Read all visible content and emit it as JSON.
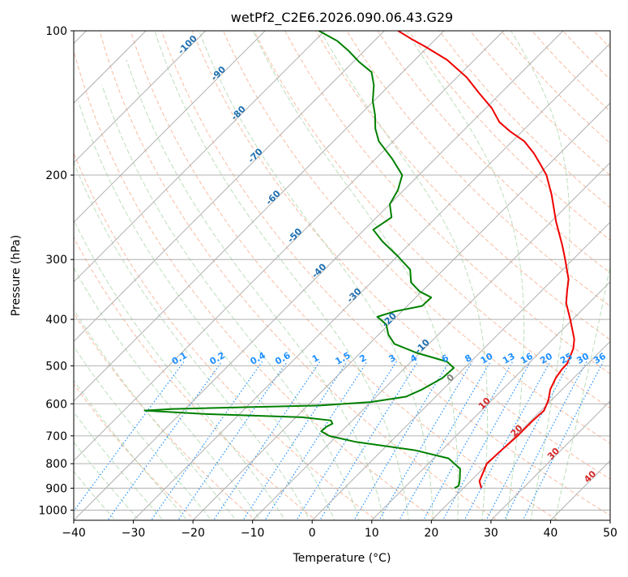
{
  "chart_data": {
    "type": "line",
    "title": "wetPf2_C2E6.2026.090.06.43.G29",
    "xlabel": "Temperature (°C)",
    "ylabel": "Pressure (hPa)",
    "xlim": [
      -40,
      50
    ],
    "ylim": [
      1050,
      100
    ],
    "y_scale": "log",
    "x_ticks": [
      -40,
      -30,
      -20,
      -10,
      0,
      10,
      20,
      30,
      40,
      50
    ],
    "x_tick_labels": [
      "−40",
      "−30",
      "−20",
      "−10",
      "0",
      "10",
      "20",
      "30",
      "40",
      "50"
    ],
    "y_ticks": [
      100,
      200,
      300,
      400,
      500,
      600,
      700,
      800,
      900,
      1000
    ],
    "y_tick_labels": [
      "100",
      "200",
      "300",
      "400",
      "500",
      "600",
      "700",
      "800",
      "900",
      "1000"
    ],
    "skew": 1.0,
    "grid": true,
    "series": [
      {
        "role": "temperature",
        "color": "#ee0000",
        "points": [
          [
            900,
            23.0
          ],
          [
            870,
            21.5
          ],
          [
            840,
            20.8
          ],
          [
            800,
            19.8
          ],
          [
            750,
            20.0
          ],
          [
            700,
            20.3
          ],
          [
            650,
            20.3
          ],
          [
            620,
            20.5
          ],
          [
            590,
            19.5
          ],
          [
            560,
            18.0
          ],
          [
            530,
            17.0
          ],
          [
            510,
            16.6
          ],
          [
            495,
            16.5
          ],
          [
            480,
            15.9
          ],
          [
            460,
            15.0
          ],
          [
            440,
            13.6
          ],
          [
            400,
            9.6
          ],
          [
            370,
            6.2
          ],
          [
            350,
            4.4
          ],
          [
            330,
            2.6
          ],
          [
            300,
            -1.3
          ],
          [
            280,
            -4.2
          ],
          [
            250,
            -9.2
          ],
          [
            220,
            -14.4
          ],
          [
            200,
            -18.6
          ],
          [
            190,
            -21.4
          ],
          [
            180,
            -24.4
          ],
          [
            170,
            -28.0
          ],
          [
            162,
            -32.1
          ],
          [
            155,
            -35.4
          ],
          [
            145,
            -39.0
          ],
          [
            135,
            -43.6
          ],
          [
            125,
            -48.4
          ],
          [
            115,
            -54.6
          ],
          [
            108,
            -60.4
          ],
          [
            104,
            -64.1
          ],
          [
            100,
            -67.7
          ]
        ]
      },
      {
        "role": "dewpoint",
        "color": "#008000",
        "points": [
          [
            900,
            18.5
          ],
          [
            890,
            18.8
          ],
          [
            880,
            18.5
          ],
          [
            860,
            17.8
          ],
          [
            820,
            16.2
          ],
          [
            780,
            12.5
          ],
          [
            750,
            5.5
          ],
          [
            720,
            -6.0
          ],
          [
            700,
            -11.3
          ],
          [
            685,
            -13.4
          ],
          [
            670,
            -13.3
          ],
          [
            660,
            -12.8
          ],
          [
            650,
            -13.6
          ],
          [
            640,
            -19.0
          ],
          [
            630,
            -36.0
          ],
          [
            620,
            -46.5
          ],
          [
            615,
            -42.0
          ],
          [
            605,
            -18.0
          ],
          [
            595,
            -10.0
          ],
          [
            580,
            -5.0
          ],
          [
            560,
            -3.5
          ],
          [
            530,
            -2.0
          ],
          [
            505,
            -1.8
          ],
          [
            490,
            -4.0
          ],
          [
            470,
            -10.5
          ],
          [
            450,
            -15.8
          ],
          [
            430,
            -18.4
          ],
          [
            410,
            -20.4
          ],
          [
            395,
            -23.2
          ],
          [
            385,
            -21.2
          ],
          [
            375,
            -17.5
          ],
          [
            360,
            -17.4
          ],
          [
            350,
            -20.3
          ],
          [
            335,
            -23.3
          ],
          [
            315,
            -25.6
          ],
          [
            295,
            -30.0
          ],
          [
            275,
            -35.0
          ],
          [
            260,
            -38.5
          ],
          [
            245,
            -37.5
          ],
          [
            230,
            -40.0
          ],
          [
            215,
            -41.0
          ],
          [
            200,
            -42.8
          ],
          [
            185,
            -47.2
          ],
          [
            170,
            -52.4
          ],
          [
            160,
            -55.1
          ],
          [
            150,
            -57.4
          ],
          [
            140,
            -60.2
          ],
          [
            130,
            -62.6
          ],
          [
            122,
            -65.2
          ],
          [
            116,
            -69.1
          ],
          [
            110,
            -72.7
          ],
          [
            105,
            -76.2
          ],
          [
            100,
            -81.0
          ]
        ]
      }
    ],
    "mixing_ratio_labels": [
      "0.1",
      "0.2",
      "0.4",
      "0.6",
      "1",
      "1.5",
      "2",
      "3",
      "4",
      "6",
      "8",
      "10",
      "13",
      "16",
      "20",
      "25",
      "30",
      "36"
    ],
    "moist_adiabat_labels": [
      "-100",
      "-90",
      "-80",
      "-70",
      "-60",
      "-50",
      "-40",
      "-30",
      "-20",
      "-10"
    ],
    "temperature_labels": [
      "0",
      "10",
      "20",
      "30",
      "40"
    ],
    "colors": {
      "isotherm": "#b0b0b0",
      "dry_adiabat": "#f4a582",
      "moist_adiabat": "#9fd09f",
      "mixing_ratio": "#1e90ff",
      "label_blue": "#1f6fb0",
      "label_red": "#d62728",
      "label_gray": "#808080"
    }
  }
}
